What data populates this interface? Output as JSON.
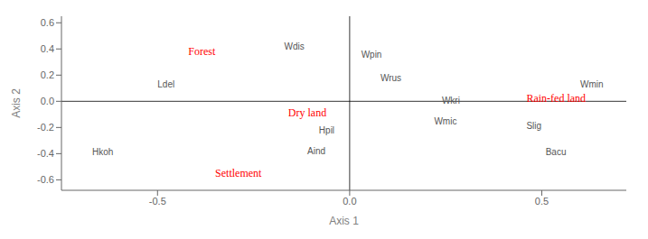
{
  "chart_data": {
    "type": "scatter",
    "xlabel": "Axis 1",
    "ylabel": "Axis 2",
    "xlim": [
      -0.75,
      0.72
    ],
    "ylim": [
      -0.68,
      0.65
    ],
    "xticks": [
      -0.5,
      {
        "value": 0,
        "label": "0.0"
      },
      0.5
    ],
    "yticks": [
      -0.6,
      -0.4,
      -0.2,
      {
        "value": 0,
        "label": "0.0"
      },
      0.2,
      0.4,
      0.6
    ],
    "grid": false,
    "series": [
      {
        "color": "#ff0000",
        "labels": [
          "Forest",
          "Dry land",
          "Rain-fed land",
          "Settlement"
        ],
        "x": [
          -0.42,
          -0.16,
          0.46,
          -0.35
        ],
        "y": [
          0.38,
          -0.09,
          0.025,
          -0.55
        ]
      },
      {
        "color": "#555555",
        "labels": [
          "Wdis",
          "Wpin",
          "Wrus",
          "Wmin",
          "Wkri",
          "Wmic",
          "Slig",
          "Bacu",
          "Hpil",
          "Aind",
          "Ldel",
          "Hkoh"
        ],
        "x": [
          -0.17,
          0.03,
          0.08,
          0.6,
          0.24,
          0.22,
          0.46,
          0.51,
          -0.08,
          -0.11,
          -0.5,
          -0.67
        ],
        "y": [
          0.42,
          0.36,
          0.18,
          0.13,
          0.005,
          -0.15,
          -0.19,
          -0.39,
          -0.22,
          -0.38,
          0.13,
          -0.39
        ]
      }
    ]
  }
}
